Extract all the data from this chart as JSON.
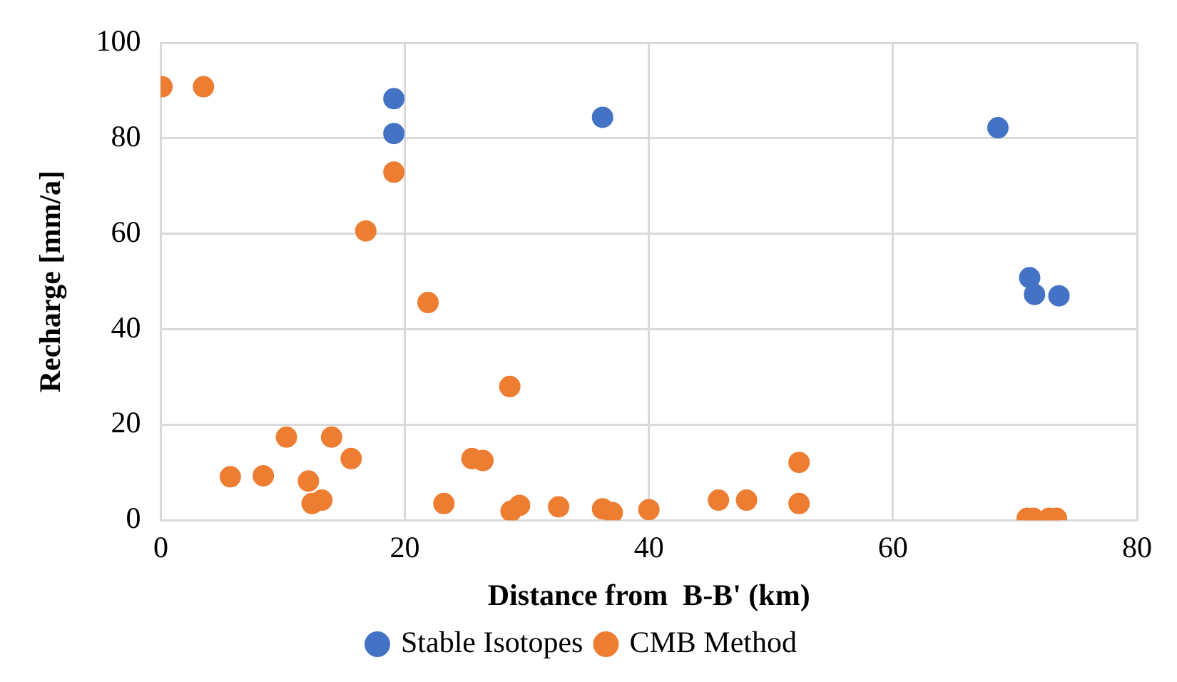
{
  "chart_data": {
    "type": "scatter",
    "xlabel": "Distance from  B-B' (km)",
    "ylabel": "Recharge [mm/a]",
    "xlim": [
      0,
      80
    ],
    "xticks": [
      0,
      20,
      40,
      60,
      80
    ],
    "ylim": [
      0,
      100
    ],
    "yticks": [
      0,
      20,
      40,
      60,
      80,
      100
    ],
    "grid": true,
    "legend": "bottom",
    "marker": "circle",
    "series": [
      {
        "name": "Stable Isotopes",
        "color": "#4472c4",
        "x": [
          19.1,
          19.1,
          36.2,
          68.6,
          71.2,
          71.6,
          73.6
        ],
        "values": [
          88.3,
          81,
          84.4,
          82.2,
          50.8,
          47.3,
          47.0
        ]
      },
      {
        "name": "CMB Method",
        "color": "#ed7d31",
        "x": [
          0.1,
          3.5,
          19.1,
          16.8,
          21.9,
          28.6,
          10.3,
          14.0,
          15.6,
          5.7,
          8.4,
          12.1,
          12.4,
          13.2,
          25.5,
          26.4,
          23.2,
          28.7,
          29.4,
          32.6,
          36.2,
          37.0,
          40.0,
          45.7,
          48.0,
          52.3,
          52.3,
          71.0,
          71.5,
          72.8,
          73.4
        ],
        "values": [
          90.8,
          90.8,
          72.9,
          60.6,
          45.6,
          28.0,
          17.4,
          17.4,
          12.9,
          9.1,
          9.3,
          8.2,
          3.5,
          4.2,
          12.9,
          12.5,
          3.5,
          1.9,
          3.1,
          2.8,
          2.4,
          1.6,
          2.2,
          4.2,
          4.2,
          12.1,
          3.5,
          0.4,
          0.4,
          0.4,
          0.4
        ]
      }
    ]
  }
}
